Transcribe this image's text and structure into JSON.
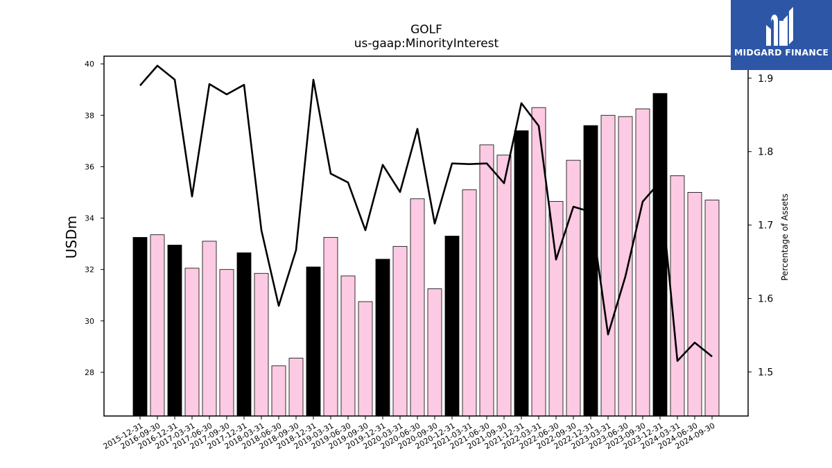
{
  "logo": {
    "text": "MIDGARD FINANCE",
    "icon": "midgard-logo-icon",
    "background": "#2d56a6"
  },
  "chart_data": {
    "type": "bar",
    "title": "GOLF",
    "subtitle": "us-gaap:MinorityInterest",
    "xlabel": "",
    "ylabel": "USDm",
    "y2label": "Percentage of Assets",
    "ylim": [
      26.3,
      40.3
    ],
    "y2lim": [
      1.44,
      1.93
    ],
    "yticks": [
      "28",
      "30",
      "32",
      "34",
      "36",
      "38",
      "40"
    ],
    "y2ticks": [
      "1.5",
      "1.6",
      "1.7",
      "1.8",
      "1.9"
    ],
    "grid": false,
    "categories": [
      "2015-12-31",
      "2016-09-30",
      "2016-12-31",
      "2017-03-31",
      "2017-06-30",
      "2017-09-30",
      "2017-12-31",
      "2018-03-31",
      "2018-06-30",
      "2018-09-30",
      "2018-12-31",
      "2019-03-31",
      "2019-06-30",
      "2019-09-30",
      "2019-12-31",
      "2020-03-31",
      "2020-06-30",
      "2020-09-30",
      "2020-12-31",
      "2021-03-31",
      "2021-06-30",
      "2021-09-30",
      "2021-12-31",
      "2022-03-31",
      "2022-06-30",
      "2022-09-30",
      "2022-12-31",
      "2023-03-31",
      "2023-06-30",
      "2023-09-30",
      "2023-12-31",
      "2024-03-31",
      "2024-06-30",
      "2024-09-30"
    ],
    "series": [
      {
        "type": "bar",
        "axis": "left",
        "values": [
          33.25,
          33.35,
          32.95,
          32.05,
          33.1,
          32.0,
          32.65,
          31.85,
          28.25,
          28.55,
          32.1,
          33.25,
          31.75,
          30.75,
          32.4,
          32.9,
          34.75,
          31.25,
          33.3,
          35.1,
          36.85,
          36.45,
          37.4,
          38.3,
          34.65,
          36.25,
          37.6,
          38.0,
          37.95,
          38.25,
          38.85,
          35.65,
          35.0,
          34.7
        ],
        "annual": [
          true,
          false,
          true,
          false,
          false,
          false,
          true,
          false,
          false,
          false,
          true,
          false,
          false,
          false,
          true,
          false,
          false,
          false,
          true,
          false,
          false,
          false,
          true,
          false,
          false,
          false,
          true,
          false,
          false,
          false,
          true,
          false,
          false,
          false
        ],
        "color_annual": "#000000",
        "color_quarter": "#fccae3"
      },
      {
        "type": "line",
        "axis": "right",
        "color": "#000000",
        "values": [
          1.89,
          1.917,
          1.898,
          1.739,
          1.892,
          1.878,
          1.891,
          1.693,
          1.59,
          1.666,
          1.898,
          1.77,
          1.758,
          1.693,
          1.782,
          1.745,
          1.831,
          1.702,
          1.784,
          1.783,
          1.784,
          1.757,
          1.866,
          1.835,
          1.653,
          1.725,
          1.718,
          1.551,
          1.63,
          1.732,
          1.759,
          1.515,
          1.54,
          1.521
        ]
      }
    ]
  }
}
